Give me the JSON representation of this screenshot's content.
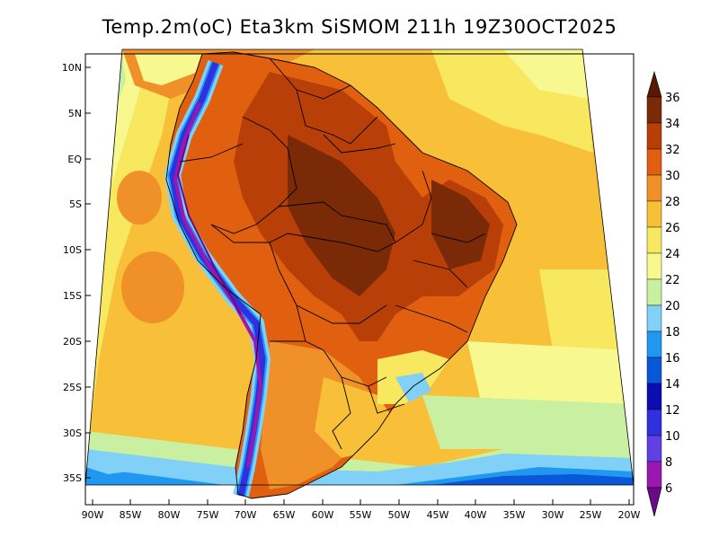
{
  "title": "Temp.2m(oC) Eta3km SiSMOM 211h 19Z30OCT2025",
  "map": {
    "lat_labels": [
      "10N",
      "5N",
      "EQ",
      "5S",
      "10S",
      "15S",
      "20S",
      "25S",
      "30S",
      "35S"
    ],
    "lon_labels": [
      "90W",
      "85W",
      "80W",
      "75W",
      "70W",
      "65W",
      "60W",
      "55W",
      "50W",
      "45W",
      "40W",
      "35W",
      "30W",
      "25W",
      "20W"
    ]
  },
  "colorbar": {
    "unit": "oC",
    "labels": [
      "36",
      "34",
      "32",
      "30",
      "28",
      "26",
      "24",
      "22",
      "20",
      "18",
      "16",
      "14",
      "12",
      "10",
      "8",
      "6"
    ],
    "colors": [
      "#f7e8f8",
      "#b070e0",
      "#8040c8",
      "#6030c0",
      "#3a2fe0",
      "#1010c8",
      "#1060d8",
      "#1090f0",
      "#50b8f8",
      "#a0e0f8",
      "#d0f4b0",
      "#f8f870",
      "#f8e050",
      "#f8c030",
      "#f09030",
      "#e86018",
      "#c04010",
      "#8a2a08",
      "#5a1800"
    ]
  },
  "legend_colors": {
    "c6": "#6a0a8a",
    "c8": "#9a18b0",
    "c10": "#6040e0",
    "c12": "#3030e0",
    "c14": "#0c0cb0",
    "c16": "#0a58d8",
    "c18": "#2098f0",
    "c20": "#80d0f8",
    "c22": "#c8f0a0",
    "c24": "#f8f890",
    "c26": "#f8e860",
    "c28": "#f8c038",
    "c30": "#f09028",
    "c32": "#e06010",
    "c34": "#b84008",
    "c36": "#7a2a06"
  }
}
